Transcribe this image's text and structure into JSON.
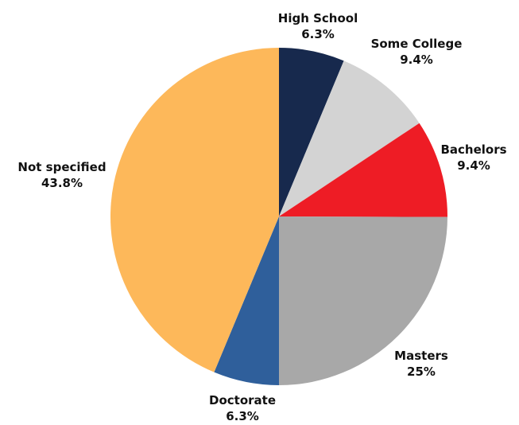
{
  "chart_data": {
    "type": "pie",
    "title": "",
    "slices": [
      {
        "label": "High School",
        "value": 6.3,
        "value_label": "6.3%",
        "color": "#17294d"
      },
      {
        "label": "Some College",
        "value": 9.4,
        "value_label": "9.4%",
        "color": "#d3d3d3"
      },
      {
        "label": "Bachelors",
        "value": 9.4,
        "value_label": "9.4%",
        "color": "#ee1c25"
      },
      {
        "label": "Masters",
        "value": 25,
        "value_label": "25%",
        "color": "#a8a8a8"
      },
      {
        "label": "Doctorate",
        "value": 6.3,
        "value_label": "6.3%",
        "color": "#2f5f9b"
      },
      {
        "label": "Not specified",
        "value": 43.8,
        "value_label": "43.8%",
        "color": "#fdb85a"
      }
    ],
    "start_angle": "12 o'clock",
    "direction": "clockwise",
    "legend": "none"
  }
}
